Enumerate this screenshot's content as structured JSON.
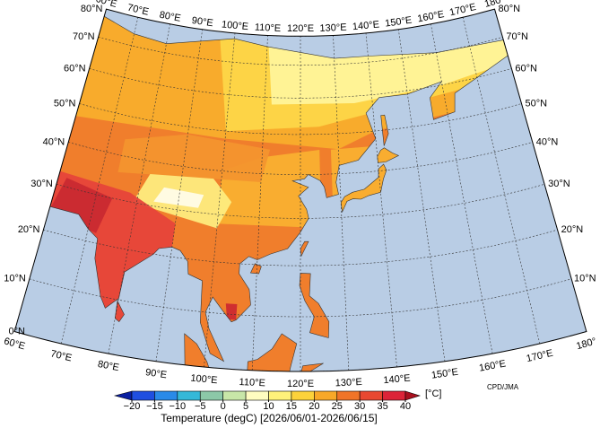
{
  "map": {
    "lon_labels": [
      "60°E",
      "70°E",
      "80°E",
      "90°E",
      "100°E",
      "110°E",
      "120°E",
      "130°E",
      "140°E",
      "150°E",
      "160°E",
      "170°E",
      "180°"
    ],
    "lat_labels": [
      "0°N",
      "10°N",
      "20°N",
      "30°N",
      "40°N",
      "50°N",
      "60°N",
      "70°N",
      "80°N"
    ]
  },
  "colorbar": {
    "ticks": [
      {
        "value": -20,
        "label": "−20"
      },
      {
        "value": -15,
        "label": "−15"
      },
      {
        "value": -10,
        "label": "−10"
      },
      {
        "value": -5,
        "label": "−5"
      },
      0,
      5,
      10,
      15,
      20,
      25,
      30,
      35,
      40
    ],
    "colors": [
      "#0a1fa0",
      "#1f4fe0",
      "#2a8ae8",
      "#35b8d8",
      "#8cc8a8",
      "#c8e6a8",
      "#fffcc0",
      "#fff27a",
      "#fcd23a",
      "#f8a828",
      "#f07428",
      "#e84830",
      "#dc2438",
      "#a8101e"
    ],
    "unit": "[°C]",
    "title": "Temperature (degC) [2026/06/01-2026/06/15]"
  },
  "credit": "CPD/JMA"
}
